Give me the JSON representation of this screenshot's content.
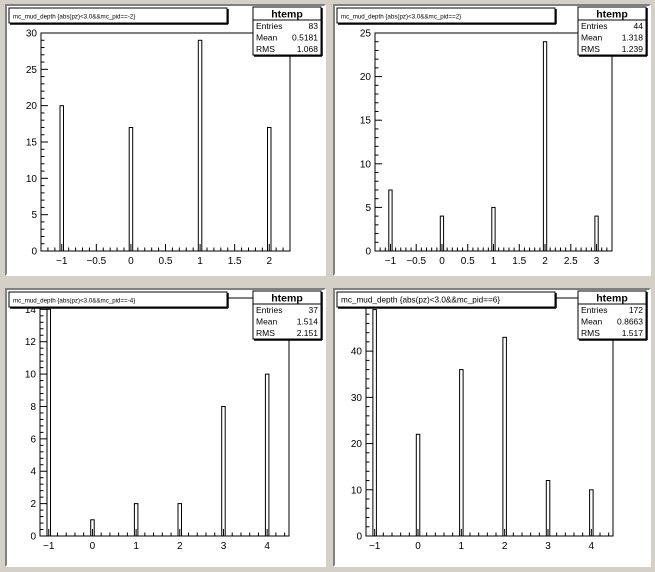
{
  "canvas": {
    "background": "#d4d0c8",
    "line_color": "#000000"
  },
  "chart_data": [
    {
      "type": "bar",
      "title": "mc_mud_depth {abs(pz)<3.0&&mc_pid==-2}",
      "xlabel": "",
      "ylabel": "",
      "categories": [
        "-1",
        "0",
        "1",
        "2"
      ],
      "x": [
        -1,
        0,
        1,
        2
      ],
      "values": [
        20,
        17,
        29,
        17
      ],
      "xlim": [
        -1.3,
        2.3
      ],
      "ylim": [
        0,
        30
      ],
      "xticks": [
        -1,
        -0.5,
        0,
        0.5,
        1,
        1.5,
        2
      ],
      "xtick_labels": [
        "−1",
        "−0.5",
        "0",
        "0.5",
        "1",
        "1.5",
        "2"
      ],
      "yticks": [
        0,
        5,
        10,
        15,
        20,
        25,
        30
      ],
      "ytick_labels": [
        "0",
        "5",
        "10",
        "15",
        "20",
        "25",
        "30"
      ],
      "stats": {
        "name": "htemp",
        "rows": [
          {
            "label": "Entries",
            "value": "83"
          },
          {
            "label": "Mean",
            "value": "0.5181"
          },
          {
            "label": "RMS",
            "value": "1.068"
          }
        ]
      }
    },
    {
      "type": "bar",
      "title": "mc_mud_depth {abs(pz)<3.0&&mc_pid==2}",
      "xlabel": "",
      "ylabel": "",
      "categories": [
        "-1",
        "0",
        "1",
        "2",
        "3"
      ],
      "x": [
        -1,
        0,
        1,
        2,
        3
      ],
      "values": [
        7,
        4,
        5,
        24,
        4
      ],
      "xlim": [
        -1.3,
        3.3
      ],
      "ylim": [
        0,
        25
      ],
      "xticks": [
        -1,
        -0.5,
        0,
        0.5,
        1,
        1.5,
        2,
        2.5,
        3
      ],
      "xtick_labels": [
        "−1",
        "−0.5",
        "0",
        "0.5",
        "1",
        "1.5",
        "2",
        "2.5",
        "3"
      ],
      "yticks": [
        0,
        5,
        10,
        15,
        20,
        25
      ],
      "ytick_labels": [
        "0",
        "5",
        "10",
        "15",
        "20",
        "25"
      ],
      "stats": {
        "name": "htemp",
        "rows": [
          {
            "label": "Entries",
            "value": "44"
          },
          {
            "label": "Mean",
            "value": "1.318"
          },
          {
            "label": "RMS",
            "value": "1.239"
          }
        ]
      }
    },
    {
      "type": "bar",
      "title": "mc_mud_depth {abs(pz)<3.0&&mc_pid==-4}",
      "xlabel": "",
      "ylabel": "",
      "categories": [
        "-1",
        "0",
        "1",
        "2",
        "3",
        "4"
      ],
      "x": [
        -1,
        0,
        1,
        2,
        3,
        4
      ],
      "values": [
        14,
        1,
        2,
        2,
        8,
        10
      ],
      "xlim": [
        -1.2,
        4.5
      ],
      "ylim": [
        0,
        14.7
      ],
      "xticks": [
        -1,
        0,
        1,
        2,
        3,
        4
      ],
      "xtick_labels": [
        "−1",
        "0",
        "1",
        "2",
        "3",
        "4"
      ],
      "yticks": [
        0,
        2,
        4,
        6,
        8,
        10,
        12,
        14
      ],
      "ytick_labels": [
        "0",
        "2",
        "4",
        "6",
        "8",
        "10",
        "12",
        "14"
      ],
      "stats": {
        "name": "htemp",
        "rows": [
          {
            "label": "Entries",
            "value": "37"
          },
          {
            "label": "Mean",
            "value": "1.514"
          },
          {
            "label": "RMS",
            "value": "2.151"
          }
        ]
      }
    },
    {
      "type": "bar",
      "title": "mc_mud_depth {abs(pz)<3.0&&mc_pid==6}",
      "xlabel": "",
      "ylabel": "",
      "categories": [
        "-1",
        "0",
        "1",
        "2",
        "3",
        "4"
      ],
      "x": [
        -1,
        0,
        1,
        2,
        3,
        4
      ],
      "values": [
        49,
        22,
        36,
        43,
        12,
        10
      ],
      "xlim": [
        -1.2,
        4.5
      ],
      "ylim": [
        0,
        51.5
      ],
      "xticks": [
        -1,
        0,
        1,
        2,
        3,
        4
      ],
      "xtick_labels": [
        "−1",
        "0",
        "1",
        "2",
        "3",
        "4"
      ],
      "yticks": [
        0,
        10,
        20,
        30,
        40,
        50
      ],
      "ytick_labels": [
        "0",
        "10",
        "20",
        "30",
        "40",
        "50"
      ],
      "stats": {
        "name": "htemp",
        "rows": [
          {
            "label": "Entries",
            "value": "172"
          },
          {
            "label": "Mean",
            "value": "0.8663"
          },
          {
            "label": "RMS",
            "value": "1.517"
          }
        ]
      }
    }
  ]
}
